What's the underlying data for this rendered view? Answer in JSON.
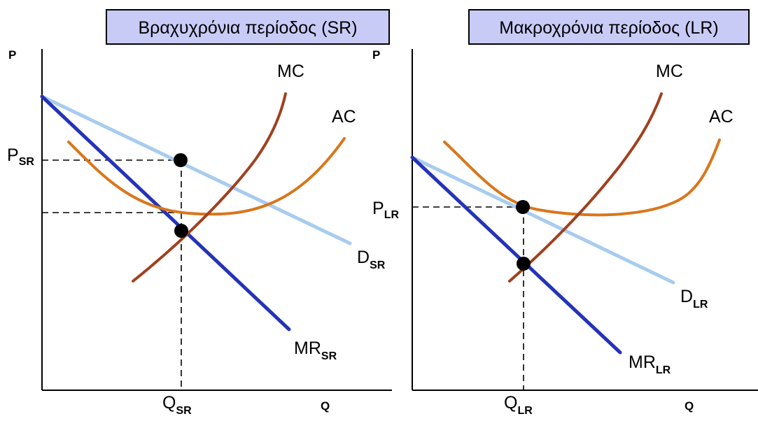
{
  "colors": {
    "mc": "#a0401e",
    "ac": "#d9761c",
    "demand": "#a8ccee",
    "mr": "#2433b8",
    "title_box": "#c9cbf7"
  },
  "short_run": {
    "title": "Βραχυχρόνια περίοδος (SR)",
    "axis_p": "P",
    "axis_q": "Q",
    "mc": "MC",
    "ac": "AC",
    "d_main": "D",
    "d_sub": "SR",
    "mr_main": "MR",
    "mr_sub": "SR",
    "price_main": "P",
    "price_sub": "SR",
    "qty_main": "Q",
    "qty_sub": "SR"
  },
  "long_run": {
    "title": "Μακροχρόνια περίοδος (LR)",
    "axis_p": "P",
    "axis_q": "Q",
    "mc": "MC",
    "ac": "AC",
    "d_main": "D",
    "d_sub": "LR",
    "mr_main": "MR",
    "mr_sub": "LR",
    "price_main": "P",
    "price_sub": "LR",
    "qty_main": "Q",
    "qty_sub": "LR"
  }
}
